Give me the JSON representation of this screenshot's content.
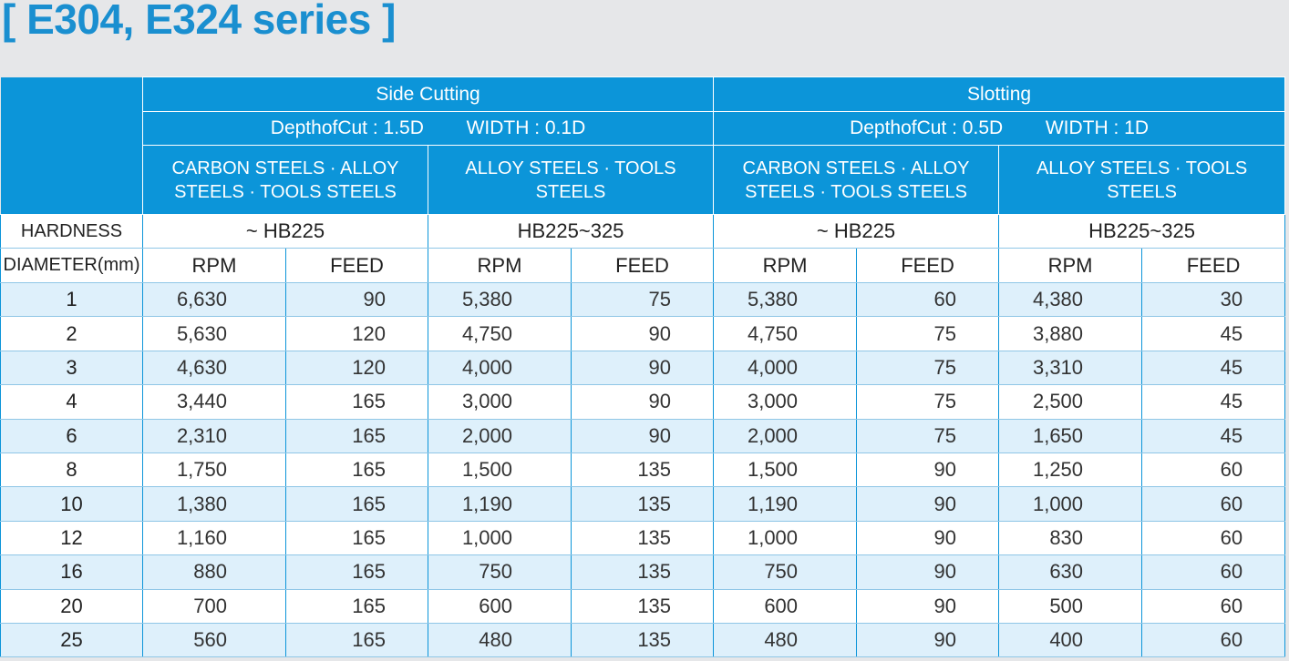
{
  "title": "[ E304, E324 series ]",
  "header": {
    "groups": [
      {
        "name": "Side Cutting",
        "cut": "DepthofCut : 1.5D",
        "width": "WIDTH : 0.1D",
        "materials": [
          {
            "label": "CARBON STEELS · ALLOY STEELS · TOOLS STEELS",
            "hardness": "~ HB225"
          },
          {
            "label": "ALLOY STEELS · TOOLS STEELS",
            "hardness": "HB225~325"
          }
        ]
      },
      {
        "name": "Slotting",
        "cut": "DepthofCut :  0.5D",
        "width": "WIDTH : 1D",
        "materials": [
          {
            "label": "CARBON STEELS · ALLOY STEELS · TOOLS STEELS",
            "hardness": "~ HB225"
          },
          {
            "label": "ALLOY STEELS · TOOLS STEELS",
            "hardness": "HB225~325"
          }
        ]
      }
    ],
    "hardness_label": "HARDNESS",
    "diameter_label": "DIAMETER(mm)",
    "rpm_label": "RPM",
    "feed_label": "FEED"
  },
  "rows": [
    {
      "d": "1",
      "v": [
        "6,630",
        "90",
        "5,380",
        "75",
        "5,380",
        "60",
        "4,380",
        "30"
      ]
    },
    {
      "d": "2",
      "v": [
        "5,630",
        "120",
        "4,750",
        "90",
        "4,750",
        "75",
        "3,880",
        "45"
      ]
    },
    {
      "d": "3",
      "v": [
        "4,630",
        "120",
        "4,000",
        "90",
        "4,000",
        "75",
        "3,310",
        "45"
      ]
    },
    {
      "d": "4",
      "v": [
        "3,440",
        "165",
        "3,000",
        "90",
        "3,000",
        "75",
        "2,500",
        "45"
      ]
    },
    {
      "d": "6",
      "v": [
        "2,310",
        "165",
        "2,000",
        "90",
        "2,000",
        "75",
        "1,650",
        "45"
      ]
    },
    {
      "d": "8",
      "v": [
        "1,750",
        "165",
        "1,500",
        "135",
        "1,500",
        "90",
        "1,250",
        "60"
      ]
    },
    {
      "d": "10",
      "v": [
        "1,380",
        "165",
        "1,190",
        "135",
        "1,190",
        "90",
        "1,000",
        "60"
      ]
    },
    {
      "d": "12",
      "v": [
        "1,160",
        "165",
        "1,000",
        "135",
        "1,000",
        "90",
        "830",
        "60"
      ]
    },
    {
      "d": "16",
      "v": [
        "880",
        "165",
        "750",
        "135",
        "750",
        "90",
        "630",
        "60"
      ]
    },
    {
      "d": "20",
      "v": [
        "700",
        "165",
        "600",
        "135",
        "600",
        "90",
        "500",
        "60"
      ]
    },
    {
      "d": "25",
      "v": [
        "560",
        "165",
        "480",
        "135",
        "480",
        "90",
        "400",
        "60"
      ]
    }
  ]
}
